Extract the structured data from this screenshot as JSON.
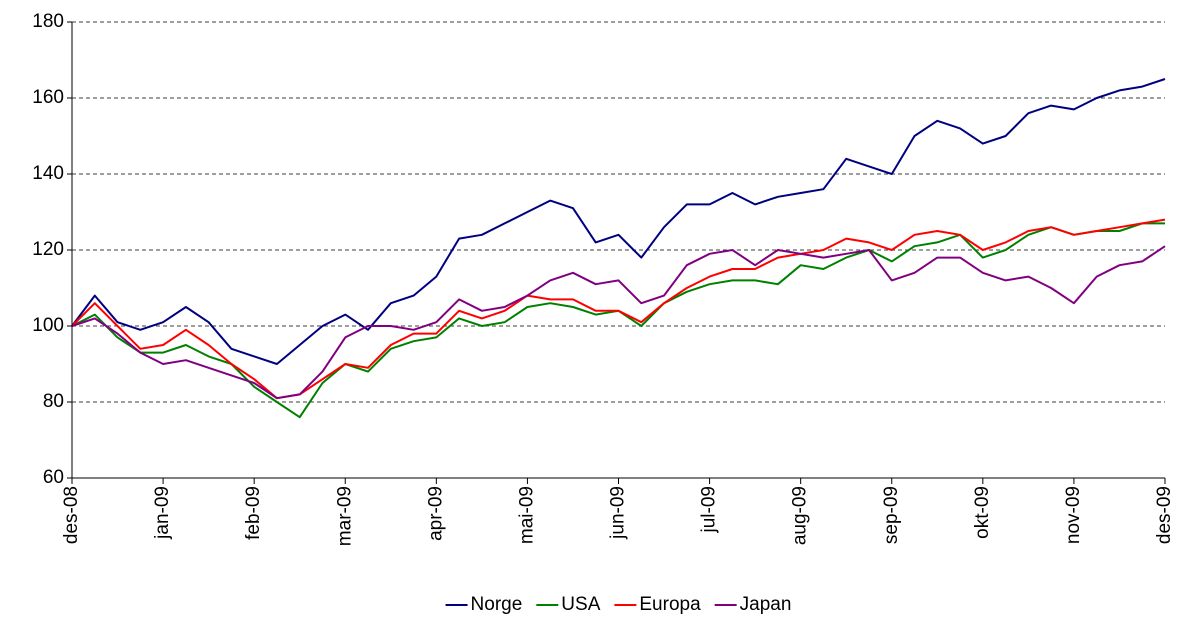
{
  "chart_data": {
    "type": "line",
    "x": [
      0,
      0.25,
      0.5,
      0.75,
      1,
      1.25,
      1.5,
      1.75,
      2,
      2.25,
      2.5,
      2.75,
      3,
      3.25,
      3.5,
      3.75,
      4,
      4.25,
      4.5,
      4.75,
      5,
      5.25,
      5.5,
      5.75,
      6,
      6.25,
      6.5,
      6.75,
      7,
      7.25,
      7.5,
      7.75,
      8,
      8.25,
      8.5,
      8.75,
      9,
      9.25,
      9.5,
      9.75,
      10,
      10.25,
      10.5,
      10.75,
      11,
      11.25,
      11.5,
      11.75,
      12
    ],
    "series": [
      {
        "name": "Norge",
        "color": "#000080",
        "values": [
          100,
          108,
          101,
          99,
          101,
          105,
          101,
          94,
          92,
          90,
          95,
          100,
          103,
          99,
          106,
          108,
          113,
          123,
          124,
          127,
          130,
          133,
          131,
          122,
          124,
          118,
          126,
          132,
          132,
          135,
          132,
          134,
          135,
          136,
          144,
          142,
          140,
          150,
          154,
          152,
          148,
          150,
          156,
          158,
          157,
          160,
          162,
          163,
          165
        ]
      },
      {
        "name": "USA",
        "color": "#008000",
        "values": [
          100,
          103,
          97,
          93,
          93,
          95,
          92,
          90,
          84,
          80,
          76,
          85,
          90,
          88,
          94,
          96,
          97,
          102,
          100,
          101,
          105,
          106,
          105,
          103,
          104,
          100,
          106,
          109,
          111,
          112,
          112,
          111,
          116,
          115,
          118,
          120,
          117,
          121,
          122,
          124,
          118,
          120,
          124,
          126,
          124,
          125,
          125,
          127,
          127
        ]
      },
      {
        "name": "Europa",
        "color": "#ff0000",
        "values": [
          100,
          106,
          100,
          94,
          95,
          99,
          95,
          90,
          86,
          81,
          82,
          86,
          90,
          89,
          95,
          98,
          98,
          104,
          102,
          104,
          108,
          107,
          107,
          104,
          104,
          101,
          106,
          110,
          113,
          115,
          115,
          118,
          119,
          120,
          123,
          122,
          120,
          124,
          125,
          124,
          120,
          122,
          125,
          126,
          124,
          125,
          126,
          127,
          128
        ]
      },
      {
        "name": "Japan",
        "color": "#800080",
        "values": [
          100,
          102,
          98,
          93,
          90,
          91,
          89,
          87,
          85,
          81,
          82,
          88,
          97,
          100,
          100,
          99,
          101,
          107,
          104,
          105,
          108,
          112,
          114,
          111,
          112,
          106,
          108,
          116,
          119,
          120,
          116,
          120,
          119,
          118,
          119,
          120,
          112,
          114,
          118,
          118,
          114,
          112,
          113,
          110,
          106,
          113,
          116,
          117,
          121
        ]
      }
    ],
    "xlim": [
      0,
      12
    ],
    "xticks": [
      {
        "value": 0,
        "label": "des-08"
      },
      {
        "value": 1,
        "label": "jan-09"
      },
      {
        "value": 2,
        "label": "feb-09"
      },
      {
        "value": 3,
        "label": "mar-09"
      },
      {
        "value": 4,
        "label": "apr-09"
      },
      {
        "value": 5,
        "label": "mai-09"
      },
      {
        "value": 6,
        "label": "jun-09"
      },
      {
        "value": 7,
        "label": "jul-09"
      },
      {
        "value": 8,
        "label": "aug-09"
      },
      {
        "value": 9,
        "label": "sep-09"
      },
      {
        "value": 10,
        "label": "okt-09"
      },
      {
        "value": 11,
        "label": "nov-09"
      },
      {
        "value": 12,
        "label": "des-09"
      }
    ],
    "ylim": [
      60,
      180
    ],
    "yticks": [
      60,
      80,
      100,
      120,
      140,
      160,
      180
    ],
    "grid": true,
    "legend": "bottom"
  }
}
